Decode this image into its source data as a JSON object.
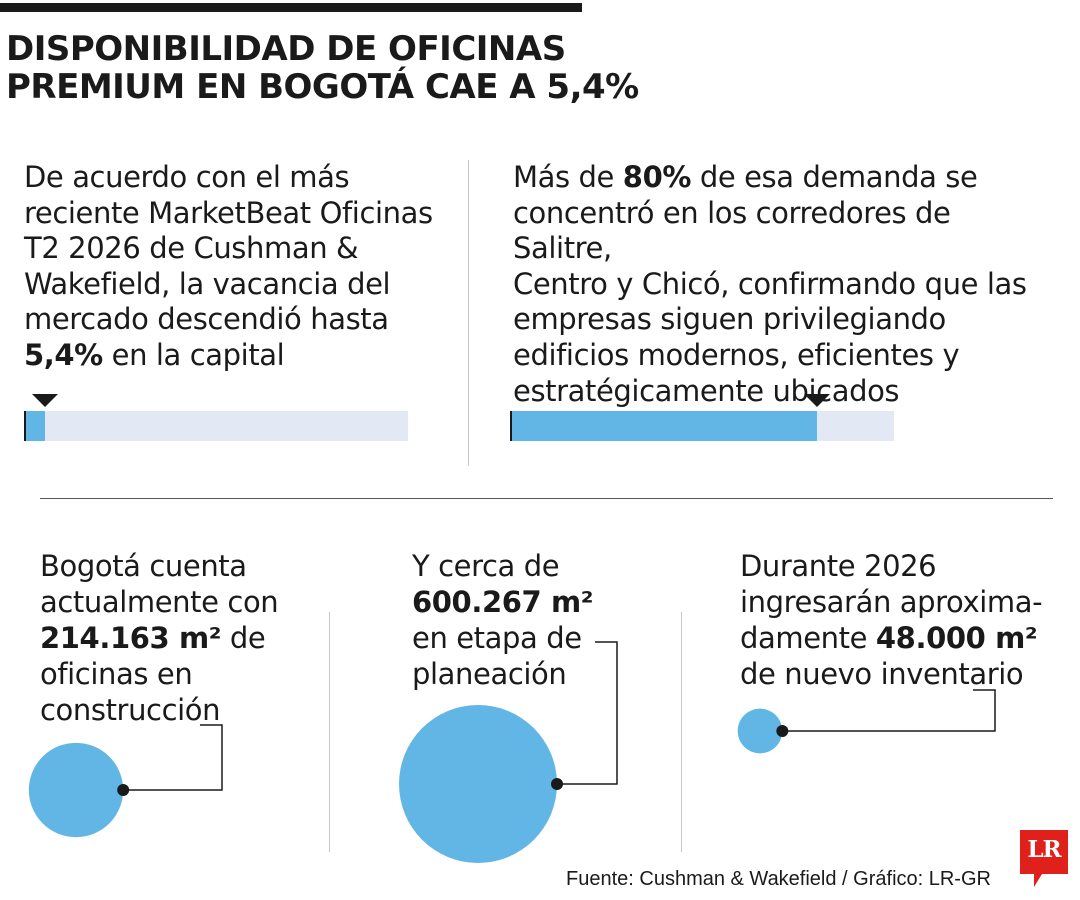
{
  "title": {
    "line1": "DISPONIBILIDAD DE OFICINAS",
    "line2": "PREMIUM EN BOGOTÁ CAE A 5,4%"
  },
  "colors": {
    "accent": "#62b6e5",
    "track": "#e3e9f4",
    "ink": "#1a1a1a",
    "logo": "#e0201b"
  },
  "vacancy_block": {
    "lines": [
      "De acuerdo con el más",
      "reciente MarketBeat Oficinas",
      "T2 2026 de Cushman &",
      "Wakefield, la vacancia del",
      "mercado descendió hasta"
    ],
    "highlight": "5,4%",
    "tail": " en la capital"
  },
  "demand_block": {
    "prefix": "Más de ",
    "highlight": "80%",
    "suffix": " de esa demanda se",
    "lines": [
      "concentró en los corredores de Salitre,",
      "Centro y Chicó, confirmando que las",
      "empresas siguen privilegiando",
      "edificios modernos, eficientes y",
      "estratégicamente ubicados"
    ]
  },
  "construction_block": {
    "lines": [
      "Bogotá cuenta",
      "actualmente con"
    ],
    "highlight": "214.163 m²",
    "after_highlight": " de",
    "lines_after": [
      "oficinas en",
      "construcción"
    ]
  },
  "planning_block": {
    "line1": "Y cerca de",
    "highlight": "600.267 m²",
    "lines_after": [
      "en etapa de",
      "planeación"
    ]
  },
  "new_inventory_block": {
    "lines": [
      "Durante 2026",
      "ingresarán aproxima-"
    ],
    "before_highlight": "damente ",
    "highlight": "48.000 m²",
    "lines_after": [
      "de nuevo inventario"
    ]
  },
  "chart_data": [
    {
      "type": "bar",
      "categories": [
        "Vacancia oficinas premium Bogotá"
      ],
      "values": [
        5.4
      ],
      "unit": "%",
      "ylim": [
        0,
        100
      ]
    },
    {
      "type": "bar",
      "categories": [
        "Demanda en corredores Salitre, Centro y Chicó"
      ],
      "values": [
        80
      ],
      "unit": "%",
      "ylim": [
        0,
        100
      ]
    },
    {
      "type": "bubble",
      "categories": [
        "En construcción",
        "En planeación",
        "Nuevo inventario 2026"
      ],
      "values": [
        214163,
        600267,
        48000
      ],
      "unit": "m²"
    }
  ],
  "source": "Fuente: Cushman & Wakefield / Gráfico: LR-GR",
  "logo": {
    "text": "LR"
  }
}
